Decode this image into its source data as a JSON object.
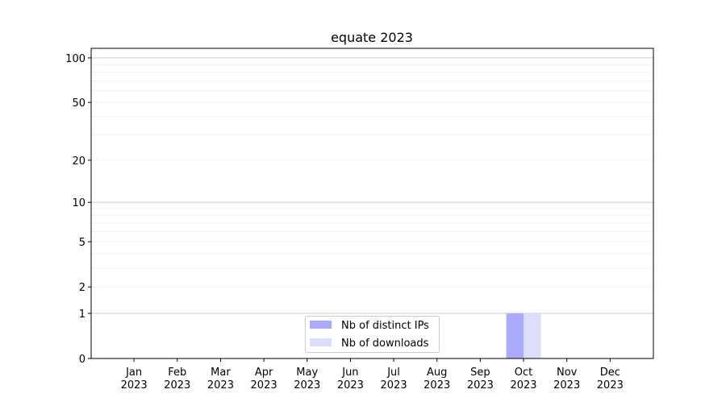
{
  "chart_data": {
    "type": "bar",
    "title": "equate 2023",
    "xlabel": "",
    "ylabel": "",
    "yscale": "log(1+y)",
    "ylim": [
      0,
      116
    ],
    "yticks": [
      0,
      1,
      2,
      5,
      10,
      20,
      50,
      100
    ],
    "ytick_labels": [
      "0",
      "1",
      "2",
      "5",
      "10",
      "20",
      "50",
      "100"
    ],
    "grid": "y major and minor",
    "legend_placement": "lower-center",
    "categories": [
      [
        "Jan",
        "2023"
      ],
      [
        "Feb",
        "2023"
      ],
      [
        "Mar",
        "2023"
      ],
      [
        "Apr",
        "2023"
      ],
      [
        "May",
        "2023"
      ],
      [
        "Jun",
        "2023"
      ],
      [
        "Jul",
        "2023"
      ],
      [
        "Aug",
        "2023"
      ],
      [
        "Sep",
        "2023"
      ],
      [
        "Oct",
        "2023"
      ],
      [
        "Nov",
        "2023"
      ],
      [
        "Dec",
        "2023"
      ]
    ],
    "series": [
      {
        "name": "Nb of distinct IPs",
        "color": "#aaaaff",
        "values": [
          0,
          0,
          0,
          0,
          0,
          0,
          0,
          0,
          0,
          1,
          0,
          0
        ]
      },
      {
        "name": "Nb of downloads",
        "color": "#ddddff",
        "values": [
          0,
          0,
          0,
          0,
          0,
          0,
          0,
          0,
          0,
          1,
          0,
          0
        ]
      }
    ]
  }
}
